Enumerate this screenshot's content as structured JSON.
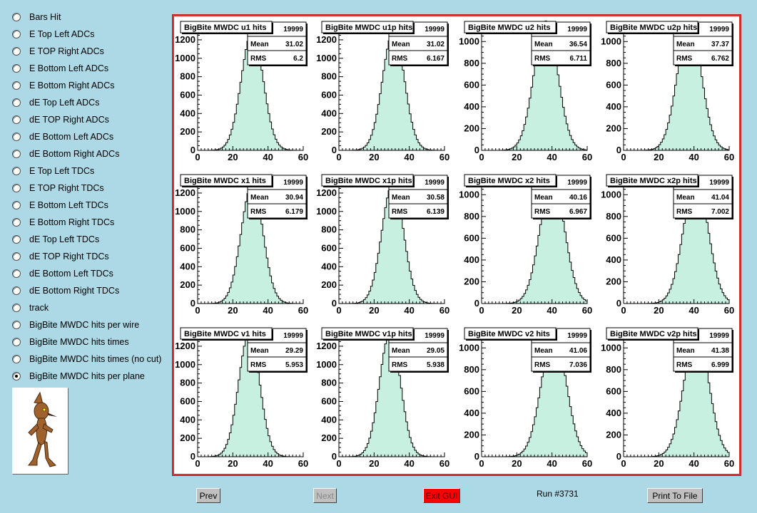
{
  "sidebar": {
    "items": [
      {
        "label": "Bars Hit",
        "checked": false
      },
      {
        "label": "E Top Left ADCs",
        "checked": false
      },
      {
        "label": "E TOP Right ADCs",
        "checked": false
      },
      {
        "label": "E Bottom Left ADCs",
        "checked": false
      },
      {
        "label": "E Bottom Right ADCs",
        "checked": false
      },
      {
        "label": "dE Top Left ADCs",
        "checked": false
      },
      {
        "label": "dE TOP Right ADCs",
        "checked": false
      },
      {
        "label": "dE Bottom Left ADCs",
        "checked": false
      },
      {
        "label": "dE Bottom Right ADCs",
        "checked": false
      },
      {
        "label": "E Top Left TDCs",
        "checked": false
      },
      {
        "label": "E TOP Right TDCs",
        "checked": false
      },
      {
        "label": "E Bottom Left TDCs",
        "checked": false
      },
      {
        "label": "E Bottom Right TDCs",
        "checked": false
      },
      {
        "label": "dE Top Left TDCs",
        "checked": false
      },
      {
        "label": "dE TOP Right TDCs",
        "checked": false
      },
      {
        "label": "dE Bottom Left TDCs",
        "checked": false
      },
      {
        "label": "dE Bottom Right TDCs",
        "checked": false
      },
      {
        "label": "track",
        "checked": false
      },
      {
        "label": "BigBite MWDC hits per wire",
        "checked": false
      },
      {
        "label": "BigBite MWDC hits times",
        "checked": false
      },
      {
        "label": "BigBite MWDC hits times (no cut)",
        "checked": false
      },
      {
        "label": "BigBite MWDC hits per plane",
        "checked": true
      }
    ]
  },
  "buttons": {
    "prev": "Prev",
    "next": "Next",
    "exit": "Exit GUI",
    "print": "Print To File"
  },
  "run_label": "Run #3731",
  "colors": {
    "background": "#add8e6",
    "fill": "#c8f0e0",
    "canvas_border": "#e03030",
    "exit_button": "#ff0000"
  },
  "chart_data": [
    {
      "type": "bar",
      "title": "BigBite MWDC u1 hits",
      "entries": "19999",
      "mean": "31.02",
      "rms": "6.2",
      "xlim": [
        0,
        60
      ],
      "ylim": [
        0,
        1300
      ],
      "xticks": [
        0,
        20,
        40,
        60
      ],
      "yticks": [
        0,
        200,
        400,
        600,
        800,
        1000,
        1200
      ]
    },
    {
      "type": "bar",
      "title": "BigBite MWDC u1p hits",
      "entries": "19999",
      "mean": "31.02",
      "rms": "6.167",
      "xlim": [
        0,
        60
      ],
      "ylim": [
        0,
        1300
      ],
      "xticks": [
        0,
        20,
        40,
        60
      ],
      "yticks": [
        0,
        200,
        400,
        600,
        800,
        1000,
        1200
      ]
    },
    {
      "type": "bar",
      "title": "BigBite MWDC u2 hits",
      "entries": "19999",
      "mean": "36.54",
      "rms": "6.711",
      "xlim": [
        0,
        60
      ],
      "ylim": [
        0,
        1100
      ],
      "xticks": [
        0,
        20,
        40,
        60
      ],
      "yticks": [
        0,
        200,
        400,
        600,
        800,
        1000
      ]
    },
    {
      "type": "bar",
      "title": "BigBite MWDC u2p hits",
      "entries": "19999",
      "mean": "37.37",
      "rms": "6.762",
      "xlim": [
        0,
        60
      ],
      "ylim": [
        0,
        1100
      ],
      "xticks": [
        0,
        20,
        40,
        60
      ],
      "yticks": [
        0,
        200,
        400,
        600,
        800,
        1000
      ]
    },
    {
      "type": "bar",
      "title": "BigBite MWDC x1 hits",
      "entries": "19999",
      "mean": "30.94",
      "rms": "6.179",
      "xlim": [
        0,
        60
      ],
      "ylim": [
        0,
        1300
      ],
      "xticks": [
        0,
        20,
        40,
        60
      ],
      "yticks": [
        0,
        200,
        400,
        600,
        800,
        1000,
        1200
      ]
    },
    {
      "type": "bar",
      "title": "BigBite MWDC x1p hits",
      "entries": "19999",
      "mean": "30.58",
      "rms": "6.139",
      "xlim": [
        0,
        60
      ],
      "ylim": [
        0,
        1300
      ],
      "xticks": [
        0,
        20,
        40,
        60
      ],
      "yticks": [
        0,
        200,
        400,
        600,
        800,
        1000,
        1200
      ]
    },
    {
      "type": "bar",
      "title": "BigBite MWDC x2 hits",
      "entries": "19999",
      "mean": "40.16",
      "rms": "6.967",
      "xlim": [
        0,
        60
      ],
      "ylim": [
        0,
        1100
      ],
      "xticks": [
        0,
        20,
        40,
        60
      ],
      "yticks": [
        0,
        200,
        400,
        600,
        800,
        1000
      ]
    },
    {
      "type": "bar",
      "title": "BigBite MWDC x2p hits",
      "entries": "19999",
      "mean": "41.04",
      "rms": "7.002",
      "xlim": [
        0,
        60
      ],
      "ylim": [
        0,
        1100
      ],
      "xticks": [
        0,
        20,
        40,
        60
      ],
      "yticks": [
        0,
        200,
        400,
        600,
        800,
        1000
      ]
    },
    {
      "type": "bar",
      "title": "BigBite MWDC v1 hits",
      "entries": "19999",
      "mean": "29.29",
      "rms": "5.953",
      "xlim": [
        0,
        60
      ],
      "ylim": [
        0,
        1300
      ],
      "xticks": [
        0,
        20,
        40,
        60
      ],
      "yticks": [
        0,
        200,
        400,
        600,
        800,
        1000,
        1200
      ]
    },
    {
      "type": "bar",
      "title": "BigBite MWDC v1p hits",
      "entries": "19999",
      "mean": "29.05",
      "rms": "5.938",
      "xlim": [
        0,
        60
      ],
      "ylim": [
        0,
        1300
      ],
      "xticks": [
        0,
        20,
        40,
        60
      ],
      "yticks": [
        0,
        200,
        400,
        600,
        800,
        1000,
        1200
      ]
    },
    {
      "type": "bar",
      "title": "BigBite MWDC v2 hits",
      "entries": "19999",
      "mean": "41.06",
      "rms": "7.036",
      "xlim": [
        0,
        60
      ],
      "ylim": [
        0,
        1100
      ],
      "xticks": [
        0,
        20,
        40,
        60
      ],
      "yticks": [
        0,
        200,
        400,
        600,
        800,
        1000
      ]
    },
    {
      "type": "bar",
      "title": "BigBite MWDC v2p hits",
      "entries": "19999",
      "mean": "41.38",
      "rms": "6.999",
      "xlim": [
        0,
        60
      ],
      "ylim": [
        0,
        1100
      ],
      "xticks": [
        0,
        20,
        40,
        60
      ],
      "yticks": [
        0,
        200,
        400,
        600,
        800,
        1000
      ]
    }
  ]
}
